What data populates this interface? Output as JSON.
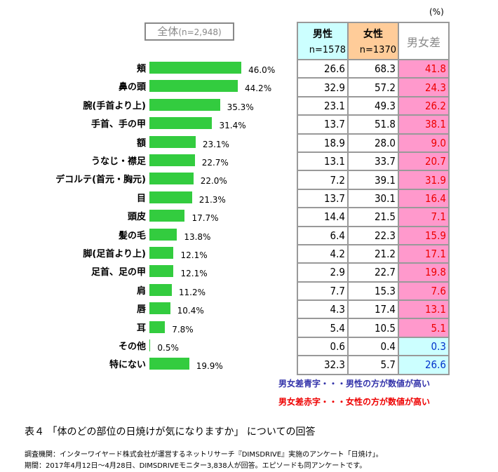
{
  "chart_data": {
    "type": "bar",
    "title": "全体",
    "total_n": "(n=2,948)",
    "unit_note": "(%)",
    "categories": [
      "頬",
      "鼻の頭",
      "腕(手首より上)",
      "手首、手の甲",
      "額",
      "うなじ・襟足",
      "デコルテ(首元・胸元)",
      "目",
      "頭皮",
      "髪の毛",
      "脚(足首より上)",
      "足首、足の甲",
      "肩",
      "唇",
      "耳",
      "その他",
      "特にない"
    ],
    "values": [
      46.0,
      44.2,
      35.3,
      31.4,
      23.1,
      22.7,
      22.0,
      21.3,
      17.7,
      13.8,
      12.1,
      12.1,
      11.2,
      10.4,
      7.8,
      0.5,
      19.9
    ],
    "value_labels": [
      "46.0%",
      "44.2%",
      "35.3%",
      "31.4%",
      "23.1%",
      "22.7%",
      "22.0%",
      "21.3%",
      "17.7%",
      "13.8%",
      "12.1%",
      "12.1%",
      "11.2%",
      "10.4%",
      "7.8%",
      "0.5%",
      "19.9%"
    ],
    "bar_color": "#33cc3f",
    "table": {
      "headers": [
        {
          "label": "男性",
          "n": "n=1578",
          "bg": "#ccffff"
        },
        {
          "label": "女性",
          "n": "n=1370",
          "bg": "#ffcc99"
        },
        {
          "label": "男女差",
          "n": "",
          "bg": "#ffffff"
        }
      ],
      "male": [
        "26.6",
        "32.9",
        "23.1",
        "13.7",
        "18.9",
        "13.1",
        "7.2",
        "13.7",
        "14.4",
        "6.4",
        "4.2",
        "2.9",
        "7.7",
        "4.3",
        "5.4",
        "0.6",
        "32.3"
      ],
      "female": [
        "68.3",
        "57.2",
        "49.3",
        "51.8",
        "28.0",
        "33.7",
        "39.1",
        "30.1",
        "21.5",
        "22.3",
        "21.2",
        "22.7",
        "15.3",
        "17.4",
        "10.5",
        "0.4",
        "5.7"
      ],
      "diff": [
        "41.8",
        "24.3",
        "26.2",
        "38.1",
        "9.0",
        "20.7",
        "31.9",
        "16.4",
        "7.1",
        "15.9",
        "17.1",
        "19.8",
        "7.6",
        "13.1",
        "5.1",
        "0.3",
        "26.6"
      ],
      "diff_side": [
        "f",
        "f",
        "f",
        "f",
        "f",
        "f",
        "f",
        "f",
        "f",
        "f",
        "f",
        "f",
        "f",
        "f",
        "f",
        "m",
        "m"
      ],
      "female_bg": "#ff99cc",
      "female_text": "#ee0000",
      "male_bg": "#ccffff",
      "male_text": "#0033cc"
    }
  },
  "notes": {
    "blue": "男女差青字・・・男性の方が数値が高い",
    "red": "男女差赤字・・・女性の方が数値が高い"
  },
  "caption": "表４ 「体のどの部位の日焼けが気になりますか」 についての回答",
  "source": [
    "調査機関：インターワイヤード株式会社が運営するネットリサーチ『DIMSDRIVE』実施のアンケート「日焼け」。",
    "期間：2017年4月12日～4月28日、DIMSDRIVEモニター3,838人が回答。エピソードも同アンケートです。"
  ]
}
